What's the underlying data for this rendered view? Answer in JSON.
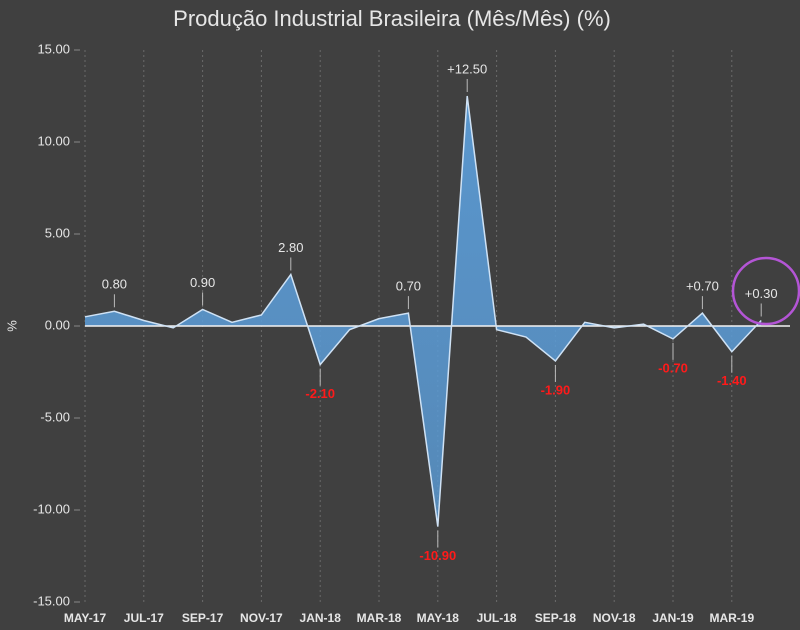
{
  "chart_data": {
    "type": "area",
    "title": "Produção Industrial Brasileira (Mês/Mês) (%)",
    "y_label": "%",
    "categories": [
      "MAY-17",
      null,
      "JUL-17",
      null,
      "SEP-17",
      null,
      "NOV-17",
      null,
      "JAN-18",
      null,
      "MAR-18",
      null,
      "MAY-18",
      null,
      "JUL-18",
      null,
      "SEP-18",
      null,
      "NOV-18",
      null,
      "JAN-19",
      null,
      "MAR-19",
      null
    ],
    "values": [
      0.5,
      0.8,
      0.3,
      -0.1,
      0.9,
      0.2,
      0.6,
      2.8,
      -2.1,
      -0.2,
      0.4,
      0.7,
      -10.9,
      12.5,
      -0.2,
      -0.6,
      -1.9,
      0.2,
      -0.1,
      0.1,
      -0.7,
      0.7,
      -1.4,
      0.3
    ],
    "value_labels": [
      null,
      "0.80",
      null,
      null,
      "0.90",
      null,
      null,
      "2.80",
      "-2.10",
      null,
      null,
      "0.70",
      "-10.90",
      "+12.50",
      null,
      null,
      "-1.90",
      null,
      null,
      null,
      "-0.70",
      "+0.70",
      "-1.40",
      "+0.30"
    ],
    "color": "#5b9bd5",
    "ylim": [
      -15,
      15
    ],
    "yticks": [
      {
        "value": -15,
        "label": "-15.00"
      },
      {
        "value": -10,
        "label": "-10.00"
      },
      {
        "value": -5,
        "label": "-5.00"
      },
      {
        "value": 0,
        "label": "0.00"
      },
      {
        "value": 5,
        "label": "5.00"
      },
      {
        "value": 10,
        "label": "10.00"
      },
      {
        "value": 15,
        "label": "15.00"
      }
    ],
    "xgrid": true
  }
}
